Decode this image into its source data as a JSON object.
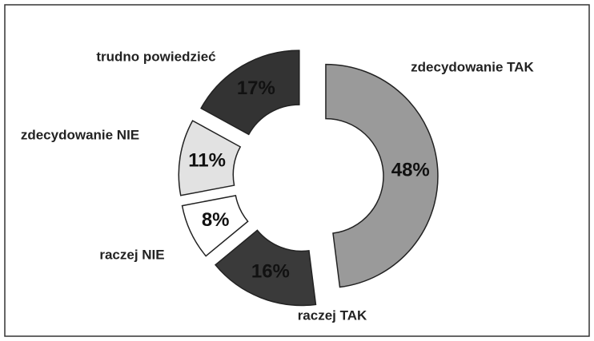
{
  "chart_data": {
    "type": "donut",
    "categories": [
      "zdecydowanie TAK",
      "raczej TAK",
      "raczej NIE",
      "zdecydowanie NIE",
      "trudno powiedzieć"
    ],
    "values": [
      48,
      16,
      8,
      11,
      17
    ],
    "value_labels": [
      "48%",
      "16%",
      "8%",
      "11%",
      "17%"
    ],
    "colors": [
      "#9a9a9a",
      "#3a3a3a",
      "#ffffff",
      "#e2e2e2",
      "#333333"
    ]
  }
}
